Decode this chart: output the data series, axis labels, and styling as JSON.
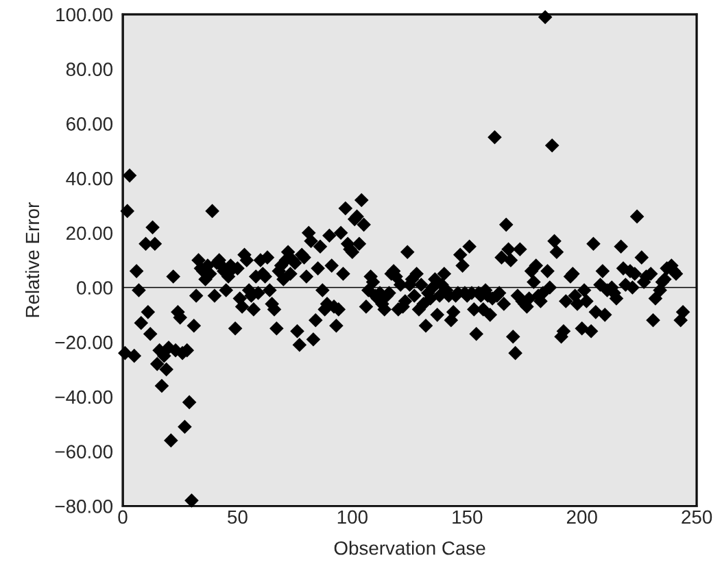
{
  "chart_data": {
    "type": "scatter",
    "xlabel": "Observation Case",
    "ylabel": "Relative Error",
    "marker": "diamond",
    "grid": false,
    "legend": false,
    "ref_lines": [
      {
        "axis": "y",
        "value": 0,
        "color": "#000000"
      }
    ],
    "xlim": [
      0,
      250
    ],
    "ylim": [
      -80,
      100
    ],
    "xticks": [
      0,
      50,
      100,
      150,
      200,
      250
    ],
    "yticks": [
      {
        "value": -80,
        "label": "−80.00"
      },
      {
        "value": -60,
        "label": "−60.00"
      },
      {
        "value": -40,
        "label": "−40.00"
      },
      {
        "value": -20,
        "label": "−20.00"
      },
      {
        "value": 0,
        "label": "0.00"
      },
      {
        "value": 20,
        "label": "20.00"
      },
      {
        "value": 40,
        "label": "40.00"
      },
      {
        "value": 60,
        "label": "60.00"
      },
      {
        "value": 80,
        "label": "80.00"
      },
      {
        "value": 100,
        "label": "100.00"
      }
    ],
    "series": [
      {
        "color": "#000000",
        "x": [
          1,
          2,
          3,
          5,
          6,
          7,
          8,
          10,
          11,
          12,
          13,
          14,
          15,
          16,
          17,
          18,
          19,
          20,
          21,
          22,
          23,
          24,
          25,
          26,
          27,
          28,
          29,
          30,
          31,
          32,
          33,
          34,
          35,
          36,
          37,
          38,
          39,
          40,
          41,
          42,
          43,
          44,
          45,
          46,
          47,
          48,
          49,
          50,
          51,
          52,
          53,
          54,
          55,
          56,
          57,
          58,
          59,
          60,
          61,
          62,
          63,
          64,
          65,
          66,
          67,
          68,
          69,
          70,
          71,
          72,
          73,
          74,
          75,
          76,
          77,
          78,
          79,
          80,
          81,
          82,
          83,
          84,
          85,
          86,
          87,
          88,
          89,
          90,
          91,
          92,
          93,
          94,
          95,
          96,
          97,
          98,
          99,
          100,
          101,
          102,
          103,
          104,
          105,
          106,
          107,
          108,
          109,
          110,
          111,
          112,
          113,
          114,
          115,
          116,
          117,
          118,
          119,
          120,
          121,
          122,
          123,
          124,
          125,
          126,
          127,
          128,
          129,
          130,
          131,
          132,
          133,
          134,
          135,
          136,
          137,
          138,
          139,
          140,
          141,
          142,
          143,
          144,
          145,
          146,
          147,
          148,
          149,
          150,
          151,
          152,
          153,
          154,
          155,
          156,
          157,
          158,
          159,
          160,
          161,
          162,
          163,
          164,
          165,
          166,
          167,
          168,
          169,
          170,
          171,
          172,
          173,
          174,
          175,
          176,
          177,
          178,
          179,
          180,
          181,
          182,
          183,
          184,
          185,
          186,
          187,
          188,
          189,
          191,
          192,
          193,
          195,
          196,
          197,
          198,
          200,
          201,
          202,
          204,
          205,
          206,
          208,
          209,
          210,
          211,
          213,
          214,
          215,
          217,
          218,
          219,
          221,
          222,
          223,
          224,
          226,
          227,
          228,
          230,
          231,
          232,
          234,
          235,
          236,
          237,
          239,
          240,
          241,
          243,
          244
        ],
        "values": [
          -24,
          28,
          41,
          -25,
          6,
          -1,
          -13,
          16,
          -9,
          -17,
          22,
          16,
          -28,
          -23,
          -36,
          -25,
          -30,
          -22,
          -56,
          4,
          -23,
          -9,
          -11,
          -24,
          -51,
          -23,
          -42,
          -78,
          -14,
          -3,
          10,
          7,
          6,
          3,
          8,
          5,
          28,
          -3,
          9,
          10,
          8,
          6,
          -1,
          4,
          8,
          7,
          -15,
          7,
          -4,
          -7,
          12,
          10,
          -1,
          -3,
          -8,
          4,
          -2,
          10,
          5,
          4,
          11,
          -1,
          -6,
          -8,
          -15,
          6,
          8,
          3,
          10,
          13,
          5,
          10,
          9,
          -16,
          -21,
          12,
          11,
          4,
          20,
          17,
          -19,
          -12,
          7,
          15,
          -1,
          -8,
          -6,
          19,
          8,
          -7,
          -14,
          -8,
          20,
          5,
          29,
          16,
          14,
          13,
          25,
          26,
          16,
          32,
          23,
          -7,
          -1,
          4,
          2,
          -3,
          -4,
          -2,
          -6,
          -8,
          -3,
          -2,
          5,
          6,
          4,
          -8,
          1,
          -7,
          -5,
          13,
          1,
          3,
          -3,
          5,
          -8,
          1,
          -6,
          -14,
          -2,
          -4,
          0,
          3,
          -10,
          -3,
          1,
          5,
          -1,
          -3,
          -12,
          -9,
          -3,
          -2,
          12,
          8,
          -2,
          -3,
          15,
          -2,
          -8,
          -17,
          -2,
          -3,
          -8,
          -1,
          -3,
          -10,
          -4,
          55,
          -3,
          -2,
          11,
          -6,
          23,
          14,
          10,
          -18,
          -24,
          -3,
          14,
          -5,
          -6,
          -7,
          -4,
          6,
          2,
          8,
          -3,
          -5,
          -2,
          99,
          6,
          0,
          52,
          17,
          13,
          -18,
          -16,
          -5,
          4,
          5,
          -3,
          -6,
          -15,
          -1,
          -5,
          -16,
          16,
          -9,
          1,
          6,
          -10,
          -1,
          0,
          -2,
          -4,
          15,
          7,
          1,
          6,
          0,
          5,
          26,
          11,
          2,
          4,
          5,
          -12,
          -4,
          -1,
          2,
          3,
          7,
          8,
          6,
          5,
          -12,
          -9
        ]
      }
    ]
  }
}
